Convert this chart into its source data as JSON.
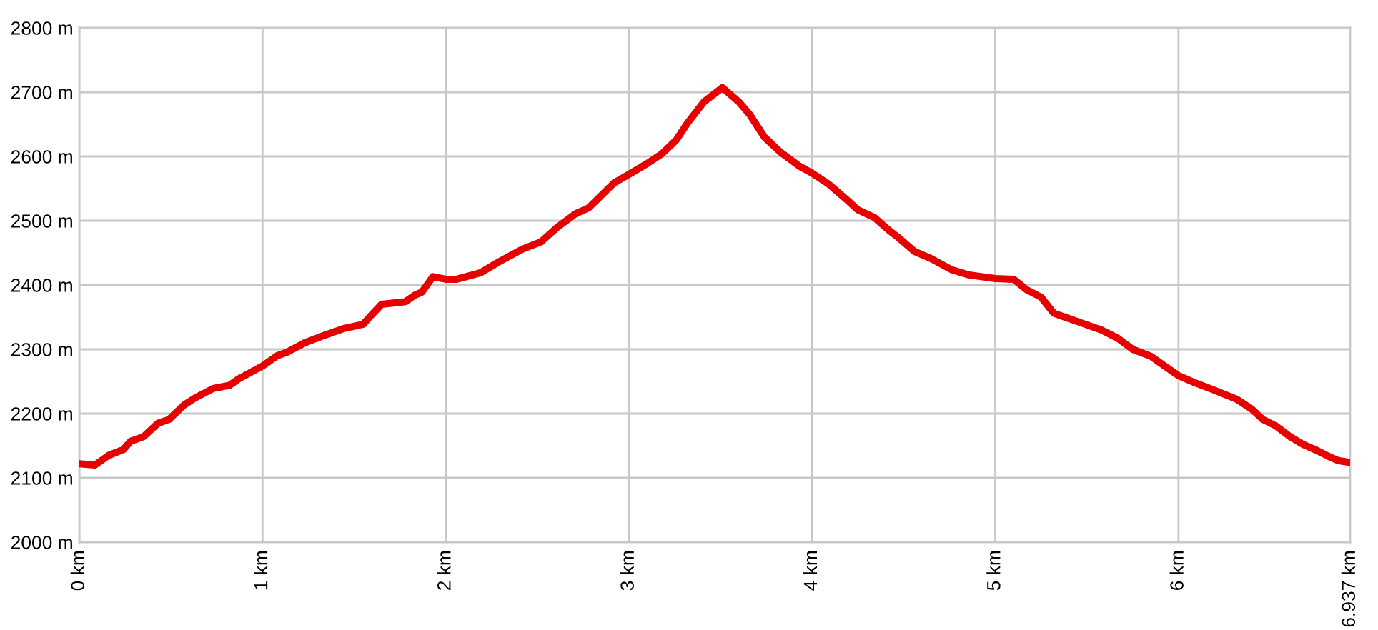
{
  "chart_data": {
    "type": "line",
    "x": [
      0,
      0.086,
      0.16,
      0.24,
      0.28,
      0.35,
      0.43,
      0.49,
      0.57,
      0.63,
      0.73,
      0.82,
      0.87,
      1.0,
      1.08,
      1.13,
      1.23,
      1.34,
      1.44,
      1.55,
      1.59,
      1.65,
      1.78,
      1.83,
      1.87,
      1.93,
      2.0,
      2.06,
      2.19,
      2.29,
      2.42,
      2.52,
      2.61,
      2.71,
      2.78,
      2.92,
      3.0,
      3.1,
      3.18,
      3.26,
      3.32,
      3.41,
      3.51,
      3.6,
      3.66,
      3.74,
      3.83,
      3.93,
      4.0,
      4.09,
      4.2,
      4.25,
      4.34,
      4.42,
      4.47,
      4.56,
      4.65,
      4.76,
      4.85,
      5.0,
      5.1,
      5.17,
      5.25,
      5.32,
      5.38,
      5.49,
      5.58,
      5.67,
      5.75,
      5.85,
      5.93,
      6.0,
      6.09,
      6.19,
      6.32,
      6.4,
      6.46,
      6.53,
      6.61,
      6.68,
      6.76,
      6.83,
      6.87,
      6.937
    ],
    "series": [
      {
        "color": "#e60000",
        "values": [
          2122,
          2120,
          2135,
          2144,
          2157,
          2164,
          2185,
          2191,
          2213,
          2224,
          2239,
          2244,
          2254,
          2274,
          2290,
          2295,
          2310,
          2322,
          2332,
          2339,
          2352,
          2370,
          2374,
          2384,
          2389,
          2413,
          2409,
          2409,
          2419,
          2436,
          2456,
          2467,
          2490,
          2511,
          2520,
          2559,
          2572,
          2589,
          2604,
          2626,
          2652,
          2685,
          2707,
          2685,
          2665,
          2630,
          2606,
          2585,
          2574,
          2557,
          2530,
          2517,
          2505,
          2485,
          2474,
          2452,
          2441,
          2424,
          2416,
          2410,
          2409,
          2393,
          2381,
          2356,
          2350,
          2339,
          2330,
          2317,
          2300,
          2289,
          2273,
          2259,
          2248,
          2237,
          2222,
          2207,
          2191,
          2181,
          2164,
          2152,
          2142,
          2132,
          2127,
          2124
        ]
      }
    ],
    "xlim": [
      0,
      6.937
    ],
    "ylim": [
      2000,
      2800
    ],
    "xticks": [
      {
        "value": 0,
        "label": "0 km"
      },
      {
        "value": 1,
        "label": "1 km"
      },
      {
        "value": 2,
        "label": "2 km"
      },
      {
        "value": 3,
        "label": "3 km"
      },
      {
        "value": 4,
        "label": "4 km"
      },
      {
        "value": 5,
        "label": "5 km"
      },
      {
        "value": 6,
        "label": "6 km"
      },
      {
        "value": 6.937,
        "label": "6.937 km"
      }
    ],
    "yticks": [
      {
        "value": 2000,
        "label": "2000 m"
      },
      {
        "value": 2100,
        "label": "2100 m"
      },
      {
        "value": 2200,
        "label": "2200 m"
      },
      {
        "value": 2300,
        "label": "2300 m"
      },
      {
        "value": 2400,
        "label": "2400 m"
      },
      {
        "value": 2500,
        "label": "2500 m"
      },
      {
        "value": 2600,
        "label": "2600 m"
      },
      {
        "value": 2700,
        "label": "2700 m"
      },
      {
        "value": 2800,
        "label": "2800 m"
      }
    ],
    "grid": true,
    "line_style": "solid"
  }
}
